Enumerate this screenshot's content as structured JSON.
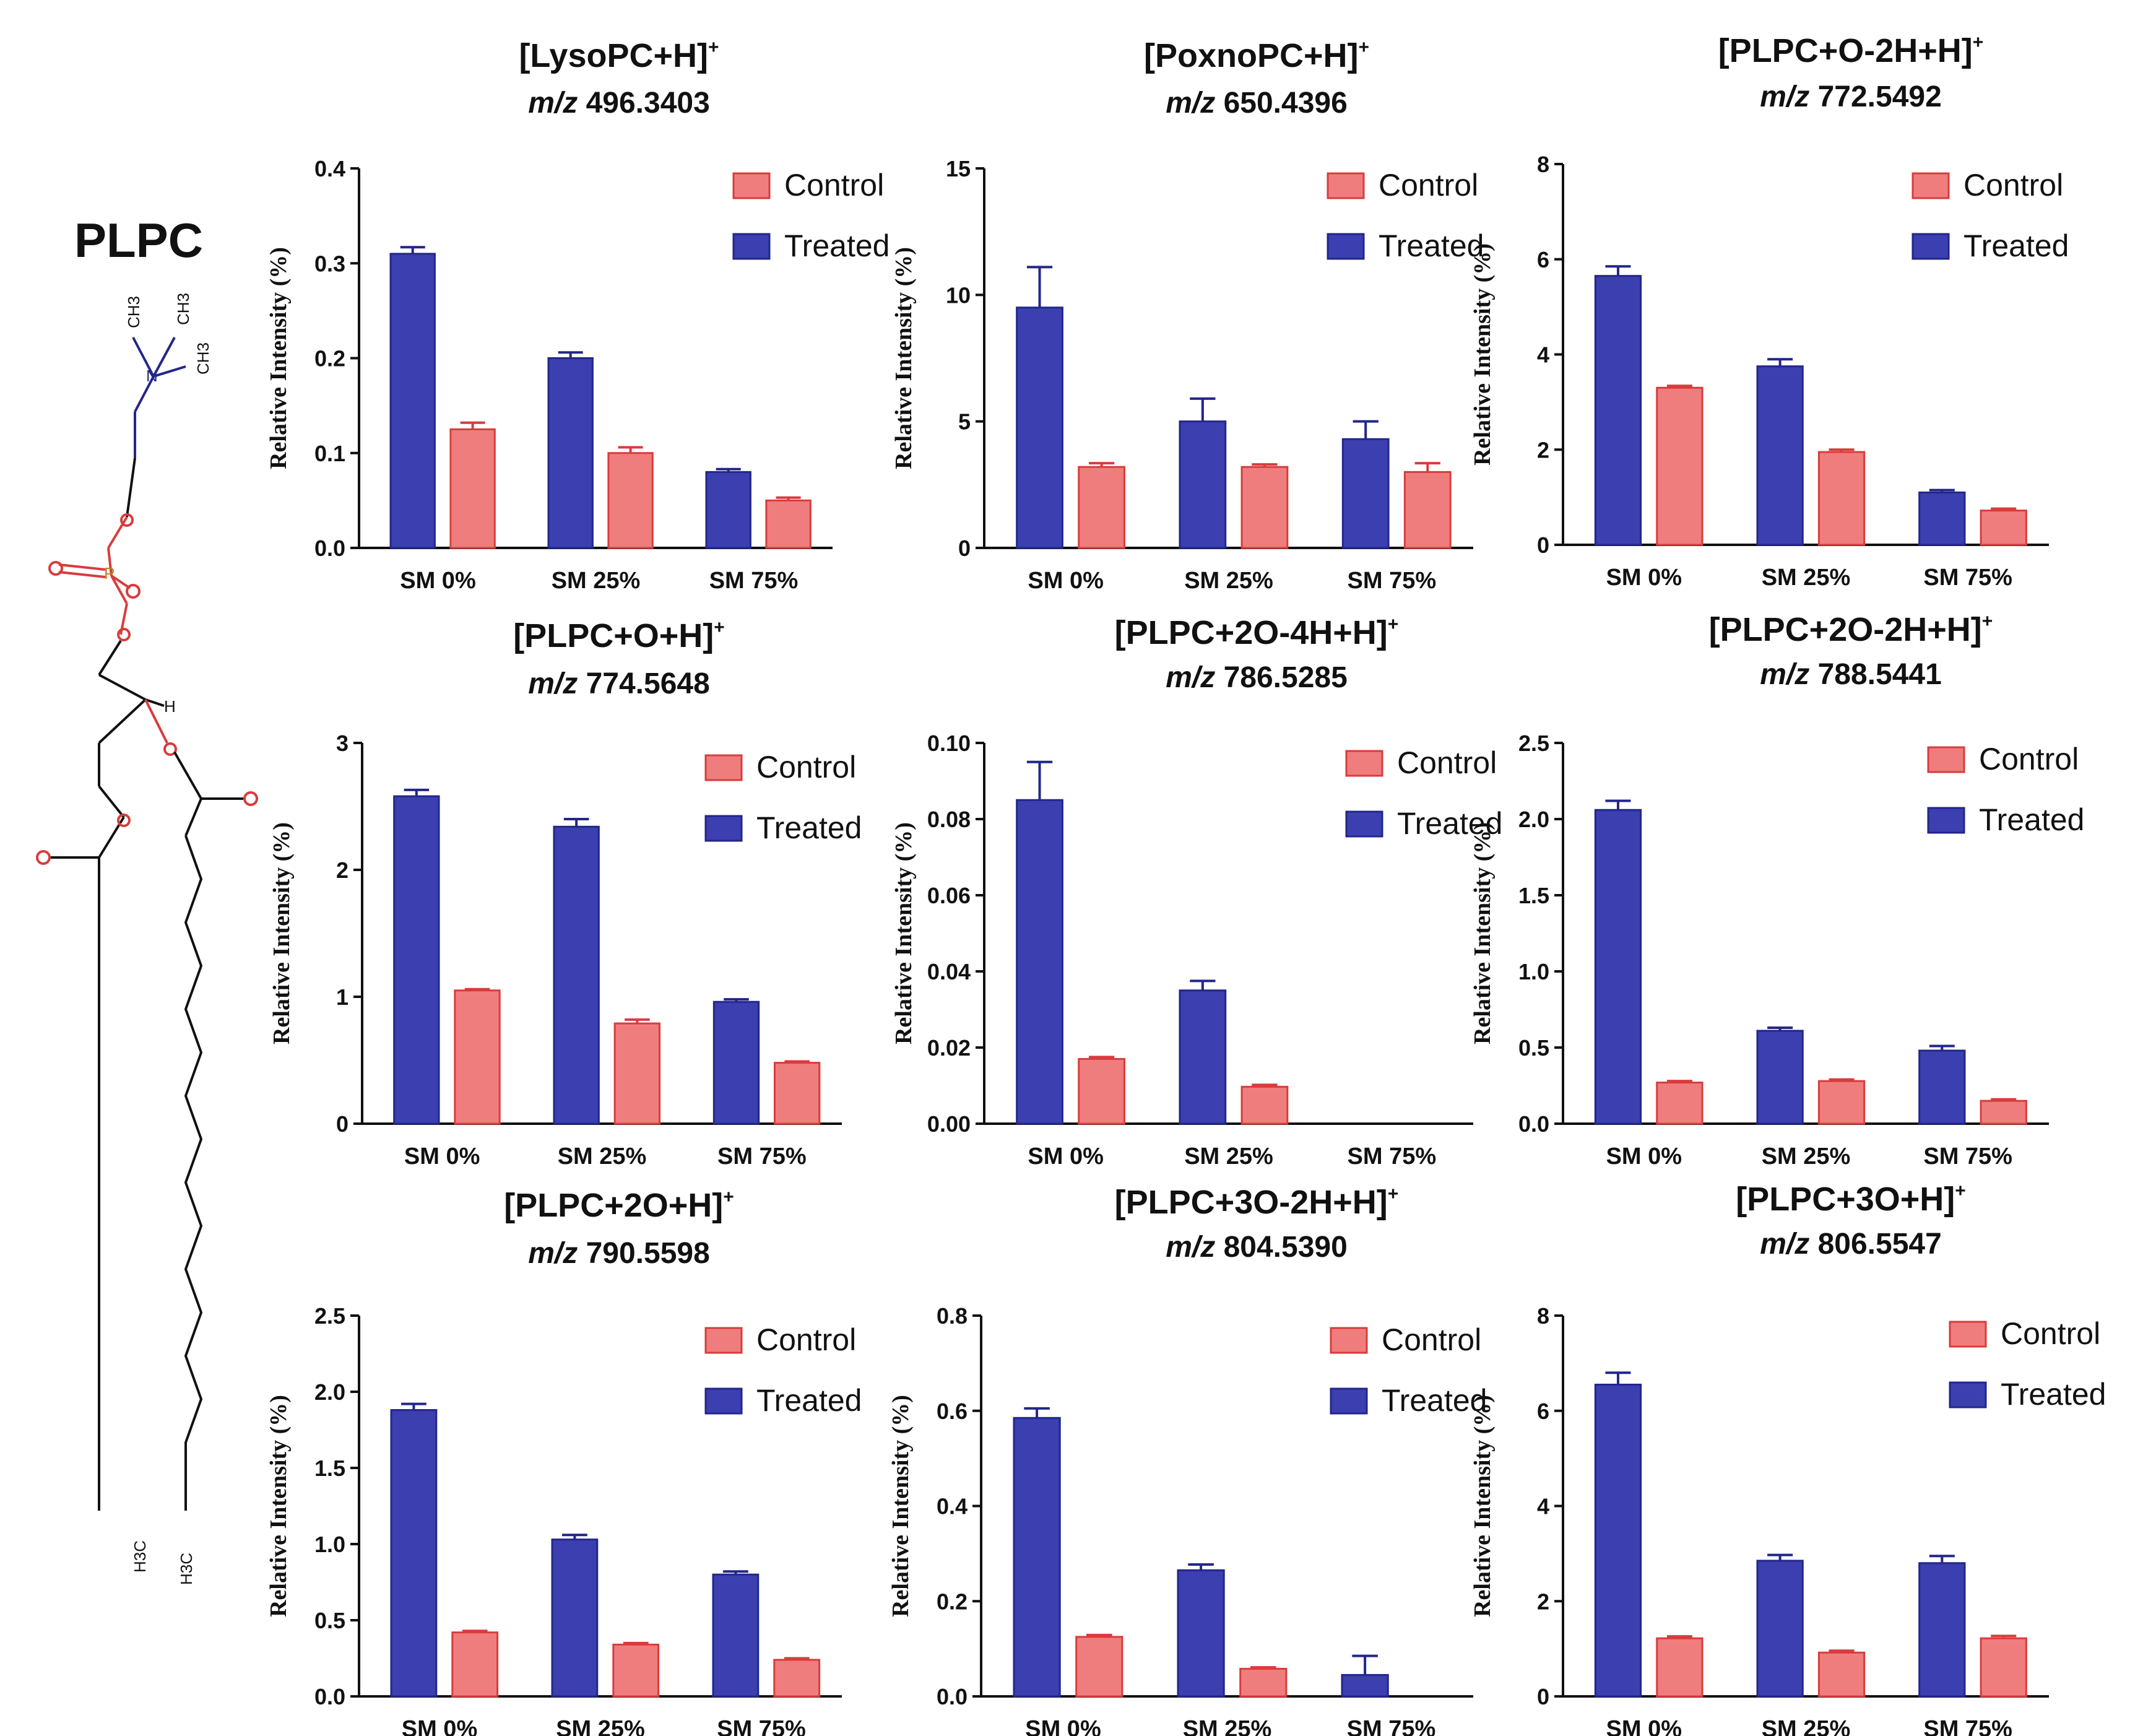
{
  "molecule": {
    "label": "PLPC",
    "atoms": {
      "ch3a": "CH3",
      "ch3b": "CH3",
      "ch3c": "CH3",
      "n": "N",
      "o": "O",
      "p": "P",
      "h": "H",
      "h3c_left": "H3C",
      "h3c_right": "H3C"
    }
  },
  "legend": {
    "control": "Control",
    "treated": "Treated"
  },
  "y_axis_label": "Relative Intensity (%)",
  "colors": {
    "control": "#f07d7d",
    "treated": "#3b3fb0",
    "control_edge": "#d83c3c",
    "treated_edge": "#23268a"
  },
  "chart_data": [
    {
      "type": "bar",
      "title": "[LysoPC+H]",
      "title_sup": "+",
      "mz_prefix": "m/z",
      "mz": "496.3403",
      "categories": [
        "SM 0%",
        "SM 25%",
        "SM 75%"
      ],
      "ylabel": "Relative Intensity (%)",
      "ylim": [
        0,
        0.4
      ],
      "yticks": [
        "0.0",
        "0.1",
        "0.2",
        "0.3",
        "0.4"
      ],
      "series": [
        {
          "name": "Treated",
          "values": [
            0.31,
            0.2,
            0.08
          ],
          "errors": [
            0.007,
            0.006,
            0.003
          ]
        },
        {
          "name": "Control",
          "values": [
            0.125,
            0.1,
            0.05
          ],
          "errors": [
            0.007,
            0.006,
            0.003
          ]
        }
      ]
    },
    {
      "type": "bar",
      "title": "[PoxnoPC+H]",
      "title_sup": "+",
      "mz_prefix": "m/z",
      "mz": "650.4396",
      "categories": [
        "SM 0%",
        "SM 25%",
        "SM 75%"
      ],
      "ylabel": "Relative Intensity (%)",
      "ylim": [
        0,
        15
      ],
      "yticks": [
        "0",
        "5",
        "10",
        "15"
      ],
      "series": [
        {
          "name": "Treated",
          "values": [
            9.5,
            5.0,
            4.3
          ],
          "errors": [
            1.6,
            0.9,
            0.7
          ]
        },
        {
          "name": "Control",
          "values": [
            3.2,
            3.2,
            3.0
          ],
          "errors": [
            0.15,
            0.1,
            0.35
          ]
        }
      ]
    },
    {
      "type": "bar",
      "title": "[PLPC+O-2H+H]",
      "title_sup": "+",
      "mz_prefix": "m/z",
      "mz": "772.5492",
      "categories": [
        "SM 0%",
        "SM 25%",
        "SM 75%"
      ],
      "ylabel": "Relative Intensity (%)",
      "ylim": [
        0,
        8
      ],
      "yticks": [
        "0",
        "2",
        "4",
        "6",
        "8"
      ],
      "series": [
        {
          "name": "Treated",
          "values": [
            5.65,
            3.75,
            1.1
          ],
          "errors": [
            0.2,
            0.15,
            0.05
          ]
        },
        {
          "name": "Control",
          "values": [
            3.3,
            1.95,
            0.72
          ],
          "errors": [
            0.04,
            0.05,
            0.04
          ]
        }
      ]
    },
    {
      "type": "bar",
      "title": "[PLPC+O+H]",
      "title_sup": "+",
      "mz_prefix": "m/z",
      "mz": "774.5648",
      "categories": [
        "SM 0%",
        "SM 25%",
        "SM 75%"
      ],
      "ylabel": "Relative Intensity (%)",
      "ylim": [
        0,
        3
      ],
      "yticks": [
        "0",
        "1",
        "2",
        "3"
      ],
      "series": [
        {
          "name": "Treated",
          "values": [
            2.58,
            2.34,
            0.96
          ],
          "errors": [
            0.05,
            0.06,
            0.02
          ]
        },
        {
          "name": "Control",
          "values": [
            1.05,
            0.79,
            0.48
          ],
          "errors": [
            0.01,
            0.03,
            0.01
          ]
        }
      ]
    },
    {
      "type": "bar",
      "title": "[PLPC+2O-4H+H]",
      "title_sup": "+",
      "mz_prefix": "m/z",
      "mz": "786.5285",
      "categories": [
        "SM 0%",
        "SM 25%",
        "SM 75%"
      ],
      "ylabel": "Relative Intensity (%)",
      "ylim": [
        0,
        0.1
      ],
      "yticks": [
        "0.00",
        "0.02",
        "0.04",
        "0.06",
        "0.08",
        "0.10"
      ],
      "series": [
        {
          "name": "Treated",
          "values": [
            0.085,
            0.035,
            0
          ],
          "errors": [
            0.01,
            0.0025,
            0
          ]
        },
        {
          "name": "Control",
          "values": [
            0.017,
            0.0097,
            0
          ],
          "errors": [
            0.0005,
            0.0005,
            0
          ]
        }
      ]
    },
    {
      "type": "bar",
      "title": "[PLPC+2O-2H+H]",
      "title_sup": "+",
      "mz_prefix": "m/z",
      "mz": "788.5441",
      "categories": [
        "SM 0%",
        "SM 25%",
        "SM 75%"
      ],
      "ylabel": "Relative Intensity (%)",
      "ylim": [
        0,
        2.5
      ],
      "yticks": [
        "0.0",
        "0.5",
        "1.0",
        "1.5",
        "2.0",
        "2.5"
      ],
      "series": [
        {
          "name": "Treated",
          "values": [
            2.06,
            0.61,
            0.48
          ],
          "errors": [
            0.06,
            0.02,
            0.03
          ]
        },
        {
          "name": "Control",
          "values": [
            0.27,
            0.28,
            0.15
          ],
          "errors": [
            0.01,
            0.01,
            0.01
          ]
        }
      ]
    },
    {
      "type": "bar",
      "title": "[PLPC+2O+H]",
      "title_sup": "+",
      "mz_prefix": "m/z",
      "mz": "790.5598",
      "categories": [
        "SM 0%",
        "SM 25%",
        "SM 75%"
      ],
      "ylabel": "Relative Intensity (%)",
      "ylim": [
        0,
        2.5
      ],
      "yticks": [
        "0.0",
        "0.5",
        "1.0",
        "1.5",
        "2.0",
        "2.5"
      ],
      "series": [
        {
          "name": "Treated",
          "values": [
            1.88,
            1.03,
            0.8
          ],
          "errors": [
            0.04,
            0.03,
            0.02
          ]
        },
        {
          "name": "Control",
          "values": [
            0.42,
            0.34,
            0.24
          ],
          "errors": [
            0.01,
            0.01,
            0.01
          ]
        }
      ]
    },
    {
      "type": "bar",
      "title": "[PLPC+3O-2H+H]",
      "title_sup": "+",
      "mz_prefix": "m/z",
      "mz": "804.5390",
      "categories": [
        "SM 0%",
        "SM 25%",
        "SM 75%"
      ],
      "ylabel": "Relative Intensity (%)",
      "ylim": [
        0,
        0.8
      ],
      "yticks": [
        "0.0",
        "0.2",
        "0.4",
        "0.6",
        "0.8"
      ],
      "series": [
        {
          "name": "Treated",
          "values": [
            0.585,
            0.265,
            0.045
          ],
          "errors": [
            0.02,
            0.012,
            0.04
          ]
        },
        {
          "name": "Control",
          "values": [
            0.125,
            0.058,
            0
          ],
          "errors": [
            0.004,
            0.003,
            0
          ]
        }
      ]
    },
    {
      "type": "bar",
      "title": "[PLPC+3O+H]",
      "title_sup": "+",
      "mz_prefix": "m/z",
      "mz": "806.5547",
      "categories": [
        "SM 0%",
        "SM 25%",
        "SM 75%"
      ],
      "ylabel": "Relative Intensity (%)",
      "ylim": [
        0,
        8
      ],
      "yticks": [
        "0",
        "2",
        "4",
        "6",
        "8"
      ],
      "series": [
        {
          "name": "Treated",
          "values": [
            6.55,
            2.85,
            2.8
          ],
          "errors": [
            0.25,
            0.12,
            0.15
          ]
        },
        {
          "name": "Control",
          "values": [
            1.22,
            0.92,
            1.22
          ],
          "errors": [
            0.04,
            0.04,
            0.05
          ]
        }
      ]
    }
  ]
}
